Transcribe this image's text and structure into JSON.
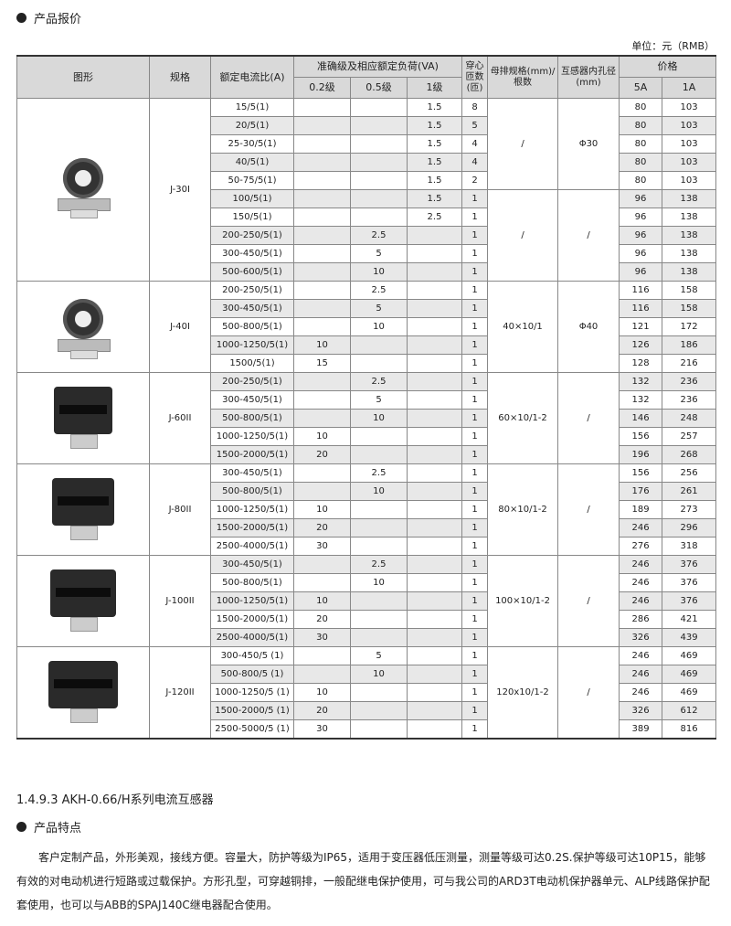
{
  "section1": {
    "title": "产品报价"
  },
  "unit_label": "单位：元（RMB）",
  "table": {
    "headers": {
      "image": "图形",
      "model": "规格",
      "ratio": "额定电流比(A)",
      "accuracy_group": "准确级及相应额定负荷(VA)",
      "c02": "0.2级",
      "c05": "0.5级",
      "c1": "1级",
      "turns": "穿心匝数(匝)",
      "busbar": "母排规格(mm)/根数",
      "aperture": "互感器内孔径(mm)",
      "price_group": "价格",
      "p5a": "5A",
      "p1a": "1A"
    },
    "groups": [
      {
        "model": "J-30I",
        "shape": "round",
        "busbar": [
          {
            "text": "/",
            "span": 5
          },
          {
            "text": "/",
            "span": 5
          }
        ],
        "aperture": [
          {
            "text": "Φ30",
            "span": 5
          },
          {
            "text": "/",
            "span": 5
          }
        ],
        "rows": [
          [
            "15/5(1)",
            "",
            "",
            "1.5",
            "8",
            "80",
            "103"
          ],
          [
            "20/5(1)",
            "",
            "",
            "1.5",
            "5",
            "80",
            "103"
          ],
          [
            "25-30/5(1)",
            "",
            "",
            "1.5",
            "4",
            "80",
            "103"
          ],
          [
            "40/5(1)",
            "",
            "",
            "1.5",
            "4",
            "80",
            "103"
          ],
          [
            "50-75/5(1)",
            "",
            "",
            "1.5",
            "2",
            "80",
            "103"
          ],
          [
            "100/5(1)",
            "",
            "",
            "1.5",
            "1",
            "96",
            "138"
          ],
          [
            "150/5(1)",
            "",
            "",
            "2.5",
            "1",
            "96",
            "138"
          ],
          [
            "200-250/5(1)",
            "",
            "2.5",
            "",
            "1",
            "96",
            "138"
          ],
          [
            "300-450/5(1)",
            "",
            "5",
            "",
            "1",
            "96",
            "138"
          ],
          [
            "500-600/5(1)",
            "",
            "10",
            "",
            "1",
            "96",
            "138"
          ]
        ]
      },
      {
        "model": "J-40I",
        "shape": "round",
        "busbar": [
          {
            "text": "40×10/1",
            "span": 5
          }
        ],
        "aperture": [
          {
            "text": "Φ40",
            "span": 5
          }
        ],
        "rows": [
          [
            "200-250/5(1)",
            "",
            "2.5",
            "",
            "1",
            "116",
            "158"
          ],
          [
            "300-450/5(1)",
            "",
            "5",
            "",
            "1",
            "116",
            "158"
          ],
          [
            "500-800/5(1)",
            "",
            "10",
            "",
            "1",
            "121",
            "172"
          ],
          [
            "1000-1250/5(1)",
            "10",
            "",
            "",
            "1",
            "126",
            "186"
          ],
          [
            "1500/5(1)",
            "15",
            "",
            "",
            "1",
            "128",
            "216"
          ]
        ]
      },
      {
        "model": "J-60II",
        "shape": "square",
        "busbar": [
          {
            "text": "60×10/1-2",
            "span": 5
          }
        ],
        "aperture": [
          {
            "text": "/",
            "span": 5
          }
        ],
        "rows": [
          [
            "200-250/5(1)",
            "",
            "2.5",
            "",
            "1",
            "132",
            "236"
          ],
          [
            "300-450/5(1)",
            "",
            "5",
            "",
            "1",
            "132",
            "236"
          ],
          [
            "500-800/5(1)",
            "",
            "10",
            "",
            "1",
            "146",
            "248"
          ],
          [
            "1000-1250/5(1)",
            "10",
            "",
            "",
            "1",
            "156",
            "257"
          ],
          [
            "1500-2000/5(1)",
            "20",
            "",
            "",
            "1",
            "196",
            "268"
          ]
        ]
      },
      {
        "model": "J-80II",
        "shape": "square",
        "busbar": [
          {
            "text": "80×10/1-2",
            "span": 5
          }
        ],
        "aperture": [
          {
            "text": "/",
            "span": 5
          }
        ],
        "rows": [
          [
            "300-450/5(1)",
            "",
            "2.5",
            "",
            "1",
            "156",
            "256"
          ],
          [
            "500-800/5(1)",
            "",
            "10",
            "",
            "1",
            "176",
            "261"
          ],
          [
            "1000-1250/5(1)",
            "10",
            "",
            "",
            "1",
            "189",
            "273"
          ],
          [
            "1500-2000/5(1)",
            "20",
            "",
            "",
            "1",
            "246",
            "296"
          ],
          [
            "2500-4000/5(1)",
            "30",
            "",
            "",
            "1",
            "276",
            "318"
          ]
        ]
      },
      {
        "model": "J-100II",
        "shape": "square",
        "busbar": [
          {
            "text": "100×10/1-2",
            "span": 5
          }
        ],
        "aperture": [
          {
            "text": "/",
            "span": 5
          }
        ],
        "rows": [
          [
            "300-450/5(1)",
            "",
            "2.5",
            "",
            "1",
            "246",
            "376"
          ],
          [
            "500-800/5(1)",
            "",
            "10",
            "",
            "1",
            "246",
            "376"
          ],
          [
            "1000-1250/5(1)",
            "10",
            "",
            "",
            "1",
            "246",
            "376"
          ],
          [
            "1500-2000/5(1)",
            "20",
            "",
            "",
            "1",
            "286",
            "421"
          ],
          [
            "2500-4000/5(1)",
            "30",
            "",
            "",
            "1",
            "326",
            "439"
          ]
        ]
      },
      {
        "model": "J-120II",
        "shape": "square",
        "busbar": [
          {
            "text": "120x10/1-2",
            "span": 5
          }
        ],
        "aperture": [
          {
            "text": "/",
            "span": 5
          }
        ],
        "rows": [
          [
            "300-450/5 (1)",
            "",
            "5",
            "",
            "1",
            "246",
            "469"
          ],
          [
            "500-800/5 (1)",
            "",
            "10",
            "",
            "1",
            "246",
            "469"
          ],
          [
            "1000-1250/5 (1)",
            "10",
            "",
            "",
            "1",
            "246",
            "469"
          ],
          [
            "1500-2000/5 (1)",
            "20",
            "",
            "",
            "1",
            "326",
            "612"
          ],
          [
            "2500-5000/5 (1)",
            "30",
            "",
            "",
            "1",
            "389",
            "816"
          ]
        ]
      }
    ]
  },
  "heading": "1.4.9.3 AKH-0.66/H系列电流互感器",
  "section2": {
    "title": "产品特点"
  },
  "paragraph": "客户定制产品，外形美观，接线方便。容量大，防护等级为IP65，适用于变压器低压测量，测量等级可达0.2S.保护等级可达10P15，能够有效的对电动机进行短路或过载保护。方形孔型，可穿越铜排，一般配继电保护使用，可与我公司的ARD3T电动机保护器单元、ALP线路保护配套使用，也可以与ABB的SPAJ140C继电器配合使用。"
}
